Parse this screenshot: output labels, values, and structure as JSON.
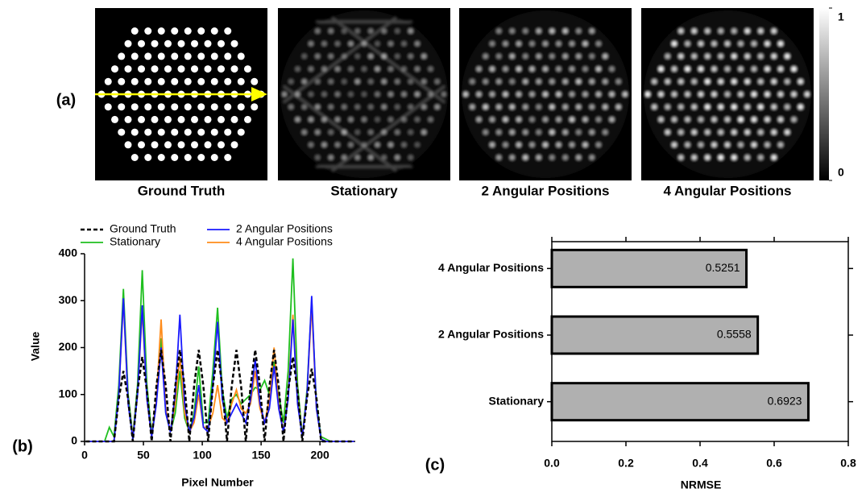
{
  "figure_a": {
    "panel_label": "(a)",
    "images": [
      "Ground Truth",
      "Stationary",
      "2 Angular Positions",
      "4 Angular Positions"
    ],
    "colorbar_ticks": [
      0,
      1
    ]
  },
  "chart_data": [
    {
      "type": "line",
      "panel_label": "(b)",
      "x_label": "Pixel Number",
      "y_label": "Value",
      "xlim": [
        0,
        230
      ],
      "xticks": [
        0,
        50,
        100,
        150,
        200
      ],
      "ylim": [
        0,
        400
      ],
      "yticks": [
        0,
        100,
        200,
        300,
        400
      ],
      "x": [
        1,
        5,
        9,
        13,
        17,
        21,
        25,
        29,
        33,
        37,
        41,
        45,
        49,
        53,
        57,
        61,
        65,
        69,
        73,
        77,
        81,
        85,
        89,
        93,
        97,
        101,
        105,
        109,
        113,
        117,
        121,
        125,
        129,
        133,
        137,
        141,
        145,
        149,
        153,
        157,
        161,
        165,
        169,
        173,
        177,
        181,
        185,
        189,
        193,
        197,
        201,
        205,
        209,
        213,
        217,
        221,
        225,
        229
      ],
      "series": [
        {
          "name": "Ground Truth",
          "color": "#000000",
          "dashed": true,
          "values": [
            0,
            0,
            0,
            0,
            0,
            0,
            0,
            90,
            150,
            90,
            0,
            108,
            180,
            108,
            0,
            117,
            195,
            117,
            0,
            117,
            195,
            117,
            0,
            117,
            195,
            117,
            0,
            117,
            195,
            117,
            0,
            117,
            195,
            117,
            0,
            117,
            195,
            117,
            0,
            117,
            195,
            117,
            0,
            108,
            180,
            108,
            0,
            93,
            155,
            93,
            0,
            0,
            0,
            0,
            0,
            0,
            0,
            0
          ]
        },
        {
          "name": "Stationary",
          "color": "#1fbf1f",
          "values": [
            0,
            0,
            0,
            0,
            0,
            30,
            10,
            120,
            325,
            100,
            10,
            120,
            365,
            120,
            15,
            90,
            220,
            60,
            20,
            60,
            150,
            50,
            20,
            60,
            160,
            40,
            40,
            150,
            285,
            110,
            50,
            90,
            100,
            80,
            90,
            100,
            115,
            110,
            130,
            100,
            170,
            100,
            40,
            150,
            390,
            120,
            10,
            110,
            300,
            80,
            10,
            5,
            0,
            0,
            0,
            0,
            0,
            0
          ]
        },
        {
          "name": "2 Angular Positions",
          "color": "#1a1aff",
          "values": [
            0,
            0,
            0,
            0,
            0,
            0,
            0,
            100,
            305,
            80,
            5,
            100,
            290,
            90,
            10,
            80,
            200,
            60,
            20,
            100,
            270,
            80,
            20,
            50,
            120,
            30,
            20,
            120,
            255,
            90,
            40,
            60,
            80,
            60,
            40,
            90,
            175,
            80,
            40,
            70,
            160,
            70,
            20,
            90,
            260,
            80,
            10,
            100,
            310,
            70,
            5,
            0,
            0,
            0,
            0,
            0,
            0,
            0
          ]
        },
        {
          "name": "4 Angular Positions",
          "color": "#ff8c1a",
          "values": [
            0,
            0,
            0,
            0,
            0,
            0,
            0,
            100,
            300,
            80,
            10,
            100,
            280,
            90,
            10,
            90,
            260,
            70,
            20,
            80,
            180,
            60,
            20,
            40,
            100,
            30,
            30,
            60,
            120,
            50,
            40,
            80,
            110,
            70,
            60,
            80,
            150,
            70,
            40,
            90,
            200,
            80,
            20,
            100,
            270,
            90,
            10,
            100,
            290,
            70,
            5,
            0,
            0,
            0,
            0,
            0,
            0,
            0
          ]
        }
      ]
    },
    {
      "type": "barh",
      "panel_label": "(c)",
      "x_label": "NRMSE",
      "categories": [
        "Stationary",
        "2 Angular Positions",
        "4 Angular Positions"
      ],
      "values": [
        0.6923,
        0.5558,
        0.5251
      ],
      "color": "#b0b0b0",
      "xlim": [
        0,
        0.8
      ],
      "xticks": [
        {
          "value": 0,
          "label": "0.0"
        },
        0.2,
        0.4,
        0.6,
        0.8
      ]
    }
  ]
}
